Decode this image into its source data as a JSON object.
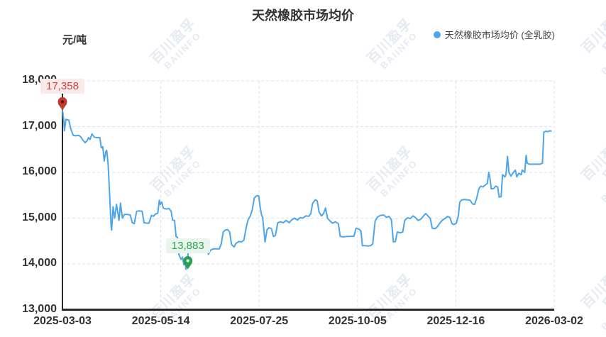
{
  "header": {
    "title": "天然橡胶市场均价",
    "unit": "元/吨",
    "legend": {
      "label": "天然橡胶市场均价 (全乳胶)",
      "color": "#4DA5EC"
    }
  },
  "watermark": {
    "line1": "百川盈孚",
    "line2": "BAIINFO"
  },
  "chart_data": {
    "type": "line",
    "title": "天然橡胶市场均价",
    "ylabel": "元/吨",
    "legend_position": "top-right",
    "grid": "dashed",
    "xtick_labels": [
      "2025-03-03",
      "2025-05-14",
      "2025-07-25",
      "2025-10-05",
      "2025-12-16",
      "2026-03-02"
    ],
    "ytick_values": [
      18000,
      17000,
      16000,
      15000,
      14000,
      13000
    ],
    "ytick_labels": [
      "18,000",
      "17,000",
      "16,000",
      "15,000",
      "14,000",
      "13,000"
    ],
    "ylim": [
      13000,
      18000
    ],
    "colors": {
      "line": "#4DA5EC",
      "grid": "#DCE1F0",
      "axis": "#2A2A2A"
    },
    "annotations": {
      "max": {
        "label": "17,358",
        "value": 17358,
        "f": 0.0,
        "text_color": "#CC4444",
        "bg": "#FBEAEA",
        "pin_color": "#C0392B",
        "pin_dot": "#4A1515"
      },
      "min": {
        "label": "13,883",
        "value": 13883,
        "f": 0.255,
        "text_color": "#2DA44E",
        "bg": "#E9F5EC",
        "pin_color": "#27A150",
        "pin_dot": "#FFFFFF"
      }
    },
    "series": [
      {
        "name": "天然橡胶市场均价 (全乳胶)",
        "color": "#4DA5EC",
        "points": [
          [
            0.0,
            17358
          ],
          [
            0.003,
            17100
          ],
          [
            0.004,
            16910
          ],
          [
            0.007,
            17160
          ],
          [
            0.013,
            17140
          ],
          [
            0.017,
            16950
          ],
          [
            0.022,
            16810
          ],
          [
            0.027,
            16800
          ],
          [
            0.033,
            16810
          ],
          [
            0.037,
            16780
          ],
          [
            0.042,
            16700
          ],
          [
            0.046,
            16650
          ],
          [
            0.05,
            16690
          ],
          [
            0.053,
            16760
          ],
          [
            0.056,
            16720
          ],
          [
            0.06,
            16840
          ],
          [
            0.065,
            16770
          ],
          [
            0.07,
            16760
          ],
          [
            0.076,
            16760
          ],
          [
            0.079,
            16540
          ],
          [
            0.082,
            16560
          ],
          [
            0.085,
            16250
          ],
          [
            0.088,
            16450
          ],
          [
            0.09,
            16480
          ],
          [
            0.093,
            16180
          ],
          [
            0.096,
            15510
          ],
          [
            0.099,
            14830
          ],
          [
            0.1,
            14740
          ],
          [
            0.103,
            15250
          ],
          [
            0.106,
            15000
          ],
          [
            0.11,
            15300
          ],
          [
            0.115,
            14950
          ],
          [
            0.118,
            15330
          ],
          [
            0.122,
            15000
          ],
          [
            0.126,
            15080
          ],
          [
            0.132,
            15080
          ],
          [
            0.138,
            15070
          ],
          [
            0.142,
            14900
          ],
          [
            0.146,
            14880
          ],
          [
            0.151,
            15150
          ],
          [
            0.156,
            15160
          ],
          [
            0.162,
            15150
          ],
          [
            0.166,
            14900
          ],
          [
            0.172,
            14890
          ],
          [
            0.176,
            14890
          ],
          [
            0.181,
            15060
          ],
          [
            0.185,
            15040
          ],
          [
            0.189,
            15090
          ],
          [
            0.194,
            15110
          ],
          [
            0.197,
            15390
          ],
          [
            0.199,
            15300
          ],
          [
            0.202,
            15350
          ],
          [
            0.205,
            15220
          ],
          [
            0.211,
            15200
          ],
          [
            0.217,
            15210
          ],
          [
            0.221,
            15150
          ],
          [
            0.224,
            14960
          ],
          [
            0.228,
            14950
          ],
          [
            0.231,
            14600
          ],
          [
            0.234,
            14580
          ],
          [
            0.237,
            14200
          ],
          [
            0.241,
            14100
          ],
          [
            0.244,
            14150
          ],
          [
            0.247,
            13980
          ],
          [
            0.25,
            14040
          ],
          [
            0.251,
            13883
          ],
          [
            0.254,
            14050
          ],
          [
            0.257,
            14380
          ],
          [
            0.26,
            14280
          ],
          [
            0.263,
            14350
          ],
          [
            0.267,
            14380
          ],
          [
            0.271,
            14300
          ],
          [
            0.277,
            14350
          ],
          [
            0.283,
            14380
          ],
          [
            0.288,
            14350
          ],
          [
            0.293,
            14300
          ],
          [
            0.297,
            14210
          ],
          [
            0.301,
            14300
          ],
          [
            0.307,
            14330
          ],
          [
            0.313,
            14330
          ],
          [
            0.319,
            14330
          ],
          [
            0.323,
            14440
          ],
          [
            0.327,
            14700
          ],
          [
            0.331,
            14740
          ],
          [
            0.336,
            14750
          ],
          [
            0.34,
            14700
          ],
          [
            0.344,
            14420
          ],
          [
            0.349,
            14370
          ],
          [
            0.353,
            14450
          ],
          [
            0.359,
            14490
          ],
          [
            0.364,
            14480
          ],
          [
            0.369,
            14520
          ],
          [
            0.373,
            14760
          ],
          [
            0.377,
            14950
          ],
          [
            0.382,
            15050
          ],
          [
            0.386,
            15180
          ],
          [
            0.39,
            15440
          ],
          [
            0.395,
            15490
          ],
          [
            0.399,
            15490
          ],
          [
            0.402,
            15250
          ],
          [
            0.405,
            15060
          ],
          [
            0.407,
            15020
          ],
          [
            0.412,
            14480
          ],
          [
            0.416,
            14750
          ],
          [
            0.42,
            14790
          ],
          [
            0.425,
            14770
          ],
          [
            0.429,
            14600
          ],
          [
            0.433,
            14620
          ],
          [
            0.438,
            14900
          ],
          [
            0.443,
            14920
          ],
          [
            0.449,
            14900
          ],
          [
            0.455,
            14950
          ],
          [
            0.461,
            14900
          ],
          [
            0.466,
            14960
          ],
          [
            0.472,
            15000
          ],
          [
            0.478,
            14960
          ],
          [
            0.483,
            15010
          ],
          [
            0.489,
            15000
          ],
          [
            0.495,
            15050
          ],
          [
            0.501,
            15040
          ],
          [
            0.505,
            15100
          ],
          [
            0.509,
            15330
          ],
          [
            0.514,
            15400
          ],
          [
            0.518,
            15380
          ],
          [
            0.522,
            15130
          ],
          [
            0.527,
            15050
          ],
          [
            0.531,
            15100
          ],
          [
            0.535,
            15220
          ],
          [
            0.539,
            15000
          ],
          [
            0.544,
            14940
          ],
          [
            0.549,
            14890
          ],
          [
            0.555,
            14920
          ],
          [
            0.561,
            14880
          ],
          [
            0.565,
            14600
          ],
          [
            0.571,
            14590
          ],
          [
            0.578,
            14600
          ],
          [
            0.585,
            14600
          ],
          [
            0.593,
            14610
          ],
          [
            0.597,
            14780
          ],
          [
            0.603,
            14760
          ],
          [
            0.607,
            14720
          ],
          [
            0.61,
            14400
          ],
          [
            0.616,
            14400
          ],
          [
            0.621,
            14390
          ],
          [
            0.627,
            14400
          ],
          [
            0.631,
            14440
          ],
          [
            0.636,
            14940
          ],
          [
            0.641,
            15030
          ],
          [
            0.647,
            15060
          ],
          [
            0.653,
            15070
          ],
          [
            0.659,
            15020
          ],
          [
            0.664,
            15040
          ],
          [
            0.669,
            14960
          ],
          [
            0.673,
            14480
          ],
          [
            0.677,
            14490
          ],
          [
            0.681,
            14700
          ],
          [
            0.687,
            14680
          ],
          [
            0.692,
            14700
          ],
          [
            0.696,
            14950
          ],
          [
            0.702,
            15010
          ],
          [
            0.707,
            14990
          ],
          [
            0.713,
            15050
          ],
          [
            0.719,
            15000
          ],
          [
            0.723,
            14950
          ],
          [
            0.729,
            14980
          ],
          [
            0.735,
            15060
          ],
          [
            0.739,
            15100
          ],
          [
            0.743,
            15050
          ],
          [
            0.748,
            14990
          ],
          [
            0.752,
            14780
          ],
          [
            0.758,
            14770
          ],
          [
            0.762,
            14810
          ],
          [
            0.768,
            14900
          ],
          [
            0.773,
            14960
          ],
          [
            0.779,
            15000
          ],
          [
            0.783,
            15040
          ],
          [
            0.788,
            15010
          ],
          [
            0.792,
            14880
          ],
          [
            0.796,
            14860
          ],
          [
            0.801,
            14890
          ],
          [
            0.805,
            15050
          ],
          [
            0.808,
            15350
          ],
          [
            0.812,
            15400
          ],
          [
            0.818,
            15410
          ],
          [
            0.824,
            15400
          ],
          [
            0.829,
            15390
          ],
          [
            0.834,
            15310
          ],
          [
            0.838,
            15300
          ],
          [
            0.842,
            15420
          ],
          [
            0.847,
            15650
          ],
          [
            0.851,
            15700
          ],
          [
            0.855,
            15680
          ],
          [
            0.859,
            15720
          ],
          [
            0.864,
            15760
          ],
          [
            0.867,
            16000
          ],
          [
            0.869,
            15900
          ],
          [
            0.872,
            15640
          ],
          [
            0.877,
            15650
          ],
          [
            0.881,
            15700
          ],
          [
            0.885,
            15680
          ],
          [
            0.888,
            15460
          ],
          [
            0.892,
            15470
          ],
          [
            0.895,
            15950
          ],
          [
            0.9,
            15900
          ],
          [
            0.902,
            15960
          ],
          [
            0.905,
            16350
          ],
          [
            0.908,
            16000
          ],
          [
            0.912,
            15920
          ],
          [
            0.917,
            16000
          ],
          [
            0.921,
            16050
          ],
          [
            0.924,
            15900
          ],
          [
            0.928,
            15980
          ],
          [
            0.933,
            15950
          ],
          [
            0.935,
            16050
          ],
          [
            0.94,
            16000
          ],
          [
            0.943,
            16370
          ],
          [
            0.945,
            16200
          ],
          [
            0.95,
            16180
          ],
          [
            0.957,
            16180
          ],
          [
            0.964,
            16180
          ],
          [
            0.971,
            16180
          ],
          [
            0.976,
            16200
          ],
          [
            0.979,
            16880
          ],
          [
            0.983,
            16900
          ],
          [
            0.987,
            16890
          ],
          [
            0.991,
            16910
          ],
          [
            0.994,
            16900
          ]
        ]
      }
    ]
  }
}
